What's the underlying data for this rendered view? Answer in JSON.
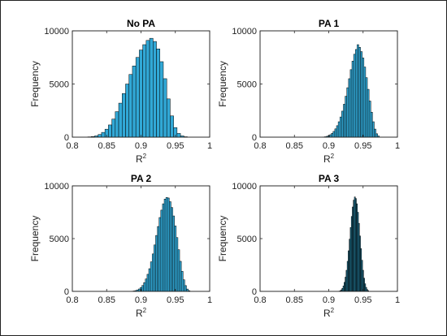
{
  "figure": {
    "border_color": "#222222"
  },
  "chart_data": [
    {
      "type": "bar",
      "title": "No PA",
      "xlabel_base": "R",
      "xlabel_sup": "2",
      "ylabel": "Frequency",
      "xlim": [
        0.8,
        1
      ],
      "ylim": [
        0,
        10000
      ],
      "xticks": [
        "0.8",
        "0.85",
        "0.9",
        "0.95",
        "1"
      ],
      "yticks": [
        "0",
        "5000",
        "10000"
      ],
      "bar_color": "#31a8d6",
      "bin_width": 0.005,
      "x": [
        0.825,
        0.83,
        0.835,
        0.84,
        0.845,
        0.85,
        0.855,
        0.86,
        0.865,
        0.87,
        0.875,
        0.88,
        0.885,
        0.89,
        0.895,
        0.9,
        0.905,
        0.91,
        0.915,
        0.92,
        0.925,
        0.93,
        0.935,
        0.94,
        0.945,
        0.95,
        0.955,
        0.96,
        0.965
      ],
      "values": [
        30,
        60,
        120,
        250,
        450,
        750,
        1150,
        1700,
        2400,
        3200,
        4100,
        5000,
        5900,
        6700,
        7500,
        8200,
        8700,
        9100,
        9300,
        9000,
        8300,
        7100,
        5500,
        3600,
        2000,
        900,
        350,
        120,
        40
      ]
    },
    {
      "type": "bar",
      "title": "PA 1",
      "xlabel_base": "R",
      "xlabel_sup": "2",
      "ylabel": "Frequency",
      "xlim": [
        0.8,
        1
      ],
      "ylim": [
        0,
        10000
      ],
      "xticks": [
        "0.8",
        "0.85",
        "0.9",
        "0.95",
        "1"
      ],
      "yticks": [
        "0",
        "5000",
        "10000"
      ],
      "bar_color": "#31a8d6",
      "bin_width": 0.0025,
      "x": [
        0.8925,
        0.895,
        0.8975,
        0.9,
        0.9025,
        0.905,
        0.9075,
        0.91,
        0.9125,
        0.915,
        0.9175,
        0.92,
        0.9225,
        0.925,
        0.9275,
        0.93,
        0.9325,
        0.935,
        0.9375,
        0.94,
        0.9425,
        0.945,
        0.9475,
        0.95,
        0.9525,
        0.955,
        0.9575,
        0.96,
        0.9625,
        0.965,
        0.9675,
        0.97,
        0.9725
      ],
      "values": [
        20,
        40,
        80,
        140,
        230,
        360,
        540,
        780,
        1080,
        1450,
        1900,
        2450,
        3100,
        3850,
        4650,
        5500,
        6350,
        7150,
        7800,
        8250,
        8700,
        8450,
        8050,
        7450,
        6600,
        5600,
        4500,
        3400,
        2350,
        1450,
        760,
        320,
        110
      ]
    },
    {
      "type": "bar",
      "title": "PA 2",
      "xlabel_base": "R",
      "xlabel_sup": "2",
      "ylabel": "Frequency",
      "xlim": [
        0.8,
        1
      ],
      "ylim": [
        0,
        10000
      ],
      "xticks": [
        "0.8",
        "0.85",
        "0.9",
        "0.95",
        "1"
      ],
      "yticks": [
        "0",
        "5000",
        "10000"
      ],
      "bar_color": "#31a8d6",
      "bin_width": 0.0025,
      "x": [
        0.8875,
        0.89,
        0.8925,
        0.895,
        0.8975,
        0.9,
        0.9025,
        0.905,
        0.9075,
        0.91,
        0.9125,
        0.915,
        0.9175,
        0.92,
        0.9225,
        0.925,
        0.9275,
        0.93,
        0.9325,
        0.935,
        0.9375,
        0.94,
        0.9425,
        0.945,
        0.9475,
        0.95,
        0.9525,
        0.955,
        0.9575,
        0.96,
        0.9625,
        0.965,
        0.9675,
        0.97
      ],
      "values": [
        20,
        40,
        80,
        140,
        230,
        360,
        560,
        830,
        1180,
        1620,
        2150,
        2800,
        3550,
        4400,
        5300,
        6150,
        7000,
        7700,
        8300,
        8750,
        8900,
        8850,
        8500,
        7950,
        7150,
        6200,
        5100,
        3950,
        2850,
        1900,
        1100,
        550,
        220,
        70
      ]
    },
    {
      "type": "bar",
      "title": "PA 3",
      "xlabel_base": "R",
      "xlabel_sup": "2",
      "ylabel": "Frequency",
      "xlim": [
        0.8,
        1
      ],
      "ylim": [
        0,
        10000
      ],
      "xticks": [
        "0.8",
        "0.85",
        "0.9",
        "0.95",
        "1"
      ],
      "yticks": [
        "0",
        "5000",
        "10000"
      ],
      "bar_color": "#1f6f8b",
      "bin_width": 0.0015,
      "x": [
        0.9155,
        0.917,
        0.9185,
        0.92,
        0.9215,
        0.923,
        0.9245,
        0.926,
        0.9275,
        0.929,
        0.9305,
        0.932,
        0.9335,
        0.935,
        0.9365,
        0.938,
        0.9395,
        0.941,
        0.9425,
        0.944,
        0.9455,
        0.947,
        0.9485,
        0.95,
        0.9515,
        0.953,
        0.9545,
        0.956,
        0.9575
      ],
      "values": [
        30,
        70,
        150,
        290,
        520,
        860,
        1350,
        2000,
        2850,
        3850,
        4950,
        6050,
        7100,
        8000,
        8650,
        8950,
        8800,
        8300,
        7500,
        6450,
        5250,
        4050,
        2950,
        2000,
        1250,
        720,
        380,
        180,
        70
      ]
    }
  ]
}
